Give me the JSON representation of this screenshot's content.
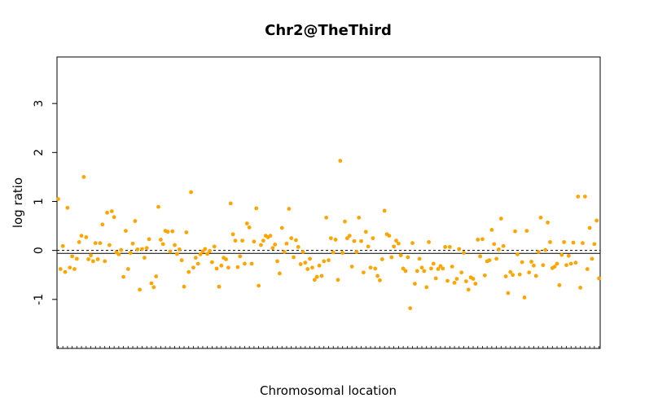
{
  "chart_data": {
    "type": "scatter",
    "title": "Chr2@TheThird",
    "xlabel": "Chromosomal location",
    "ylabel": "log ratio",
    "ylim": [
      -2,
      3.95
    ],
    "yticks": [
      -1,
      0,
      1,
      2,
      3
    ],
    "ytick_labels": [
      "-1",
      "0",
      "1",
      "2",
      "3"
    ],
    "grid": false,
    "point_color": "#FFA500",
    "reference_lines": {
      "solid": -0.06,
      "dashed": 0.0
    },
    "x_rug": true,
    "series": [
      {
        "values": [
          1.05,
          -0.38,
          0.09,
          -0.44,
          0.87,
          -0.35,
          -0.12,
          -0.38,
          -0.17,
          0.17,
          0.3,
          1.5,
          0.27,
          -0.18,
          -0.1,
          -0.22,
          0.15,
          -0.18,
          0.15,
          0.53,
          -0.22,
          0.77,
          0.11,
          0.8,
          0.68,
          -0.04,
          -0.08,
          0.01,
          -0.54,
          0.4,
          -0.38,
          -0.05,
          0.14,
          0.6,
          0.02,
          -0.8,
          0.03,
          -0.15,
          0.05,
          0.23,
          -0.67,
          -0.75,
          -0.53,
          0.89,
          0.22,
          0.13,
          0.4,
          0.38,
          -0.02,
          0.39,
          0.11,
          -0.07,
          0.02,
          -0.2,
          -0.74,
          0.37,
          -0.44,
          1.19,
          -0.35,
          -0.15,
          -0.27,
          -0.08,
          -0.02,
          0.03,
          -0.07,
          -0.01,
          -0.24,
          0.08,
          -0.37,
          -0.74,
          -0.31,
          -0.15,
          -0.18,
          -0.35,
          0.96,
          0.33,
          0.2,
          -0.34,
          -0.12,
          0.2,
          -0.27,
          0.55,
          0.47,
          -0.27,
          0.18,
          0.86,
          -0.72,
          0.11,
          0.2,
          0.3,
          0.27,
          0.3,
          0.05,
          0.12,
          -0.22,
          -0.47,
          0.46,
          -0.03,
          0.14,
          0.85,
          0.25,
          -0.14,
          0.21,
          0.07,
          -0.28,
          -0.03,
          -0.25,
          -0.38,
          -0.17,
          -0.35,
          -0.6,
          -0.54,
          -0.31,
          -0.52,
          -0.22,
          0.67,
          -0.2,
          0.25,
          -0.04,
          0.22,
          -0.6,
          1.83,
          -0.05,
          0.59,
          0.25,
          0.3,
          -0.33,
          0.19,
          -0.03,
          0.67,
          0.19,
          -0.45,
          0.38,
          0.08,
          -0.35,
          0.25,
          -0.37,
          -0.52,
          -0.61,
          -0.18,
          0.81,
          0.33,
          0.3,
          -0.14,
          0.08,
          0.2,
          0.14,
          -0.1,
          -0.37,
          -0.42,
          -0.14,
          -1.18,
          0.15,
          -0.68,
          -0.42,
          -0.17,
          -0.35,
          -0.42,
          -0.75,
          0.17,
          -0.37,
          -0.27,
          -0.57,
          -0.38,
          -0.32,
          -0.37,
          0.07,
          -0.62,
          0.07,
          -0.33,
          -0.66,
          -0.58,
          0.03,
          -0.45,
          -0.05,
          -0.63,
          -0.8,
          -0.55,
          -0.58,
          -0.68,
          0.22,
          -0.12,
          0.23,
          -0.51,
          -0.22,
          -0.2,
          0.42,
          0.13,
          -0.17,
          0.02,
          0.65,
          0.09,
          -0.53,
          -0.87,
          -0.44,
          -0.5,
          0.39,
          -0.08,
          -0.49,
          -0.24,
          -0.96,
          0.4,
          -0.45,
          -0.23,
          -0.31,
          -0.52,
          -0.03,
          0.67,
          -0.3,
          0.01,
          0.57,
          0.17,
          -0.36,
          -0.33,
          -0.27,
          -0.71,
          -0.09,
          0.17,
          -0.3,
          -0.11,
          -0.27,
          0.16,
          -0.25,
          1.1,
          -0.76,
          0.15,
          1.1,
          -0.38,
          0.46,
          -0.17,
          0.13,
          0.61,
          -0.57
        ]
      }
    ]
  }
}
